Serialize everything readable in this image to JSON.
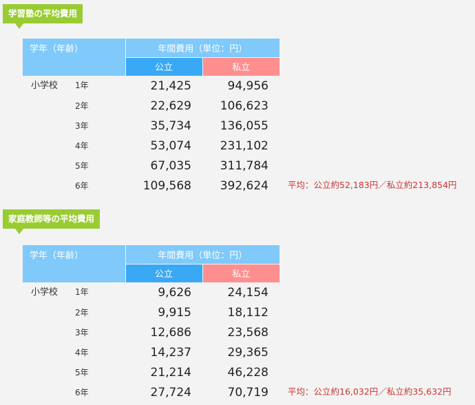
{
  "juku": {
    "title": "学習塾の平均費用",
    "header": {
      "grade": "学年（年齢）",
      "cost": "年間費用（単位：円）",
      "public": "公立",
      "private": "私立"
    },
    "school": "小学校",
    "rows": [
      {
        "grade": "1年",
        "public": "21,425",
        "private": "94,956"
      },
      {
        "grade": "2年",
        "public": "22,629",
        "private": "106,623"
      },
      {
        "grade": "3年",
        "public": "35,734",
        "private": "136,055"
      },
      {
        "grade": "4年",
        "public": "53,074",
        "private": "231,102"
      },
      {
        "grade": "5年",
        "public": "67,035",
        "private": "311,784"
      },
      {
        "grade": "6年",
        "public": "109,568",
        "private": "392,624"
      }
    ],
    "average_note": "平均：公立約52,183円／私立約213,854円"
  },
  "tutor": {
    "title": "家庭教師等の平均費用",
    "header": {
      "grade": "学年（年齢）",
      "cost": "年間費用（単位：円）",
      "public": "公立",
      "private": "私立"
    },
    "school": "小学校",
    "rows": [
      {
        "grade": "1年",
        "public": "9,626",
        "private": "24,154"
      },
      {
        "grade": "2年",
        "public": "9,915",
        "private": "18,112"
      },
      {
        "grade": "3年",
        "public": "12,686",
        "private": "23,568"
      },
      {
        "grade": "4年",
        "public": "14,237",
        "private": "29,365"
      },
      {
        "grade": "5年",
        "public": "21,214",
        "private": "46,228"
      },
      {
        "grade": "6年",
        "public": "27,724",
        "private": "70,719"
      }
    ],
    "average_note": "平均：公立約16,032円／私立約35,632円"
  }
}
